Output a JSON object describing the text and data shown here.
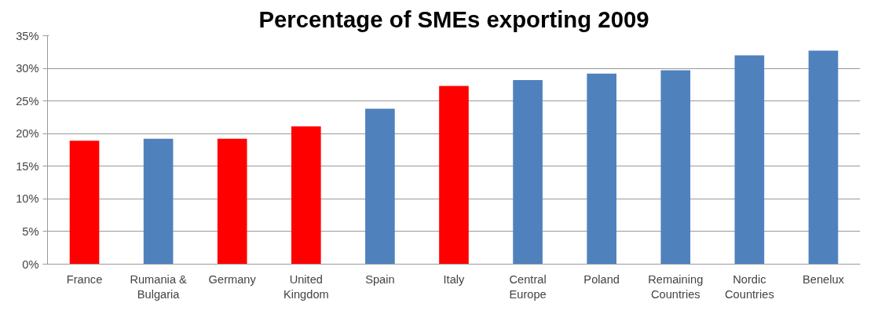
{
  "chart_data": {
    "type": "bar",
    "title": "Percentage of SMEs exporting 2009",
    "categories": [
      "France",
      "Rumania & Bulgaria",
      "Germany",
      "United Kingdom",
      "Spain",
      "Italy",
      "Central Europe",
      "Poland",
      "Remaining Countries",
      "Nordic Countries",
      "Benelux"
    ],
    "values": [
      18.9,
      19.2,
      19.2,
      21.1,
      23.8,
      27.3,
      28.2,
      29.2,
      29.7,
      32.0,
      32.7
    ],
    "colors": [
      "#ff0000",
      "#4f81bd",
      "#ff0000",
      "#ff0000",
      "#4f81bd",
      "#ff0000",
      "#4f81bd",
      "#4f81bd",
      "#4f81bd",
      "#4f81bd",
      "#4f81bd"
    ],
    "ylim": [
      0,
      35
    ],
    "yticks": [
      {
        "value": 0,
        "label": "0%"
      },
      {
        "value": 5,
        "label": "5%"
      },
      {
        "value": 10,
        "label": "10%"
      },
      {
        "value": 15,
        "label": "15%"
      },
      {
        "value": 20,
        "label": "20%"
      },
      {
        "value": 25,
        "label": "25%"
      },
      {
        "value": 30,
        "label": "30%"
      },
      {
        "value": 35,
        "label": "35%"
      }
    ],
    "grid": "y"
  }
}
